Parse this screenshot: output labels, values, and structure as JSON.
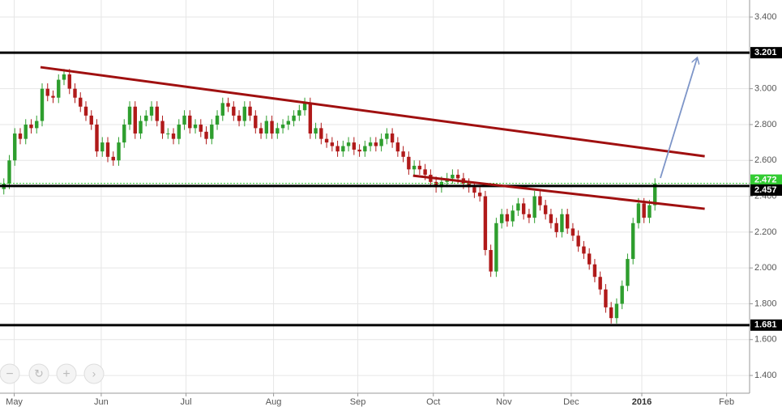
{
  "chart_data": {
    "type": "candlestick",
    "open": [
      2.44,
      2.47,
      2.6,
      2.75,
      2.72,
      2.8,
      2.78,
      2.82,
      3.0,
      2.96,
      2.95,
      3.05,
      3.08,
      3.0,
      2.95,
      2.9,
      2.85,
      2.8,
      2.65,
      2.7,
      2.62,
      2.6,
      2.7,
      2.8,
      2.9,
      2.75,
      2.82,
      2.85,
      2.9,
      2.82,
      2.75,
      2.75,
      2.72,
      2.8,
      2.85,
      2.78,
      2.8,
      2.76,
      2.72,
      2.8,
      2.85,
      2.92,
      2.9,
      2.85,
      2.82,
      2.9,
      2.85,
      2.78,
      2.75,
      2.82,
      2.75,
      2.78,
      2.8,
      2.82,
      2.85,
      2.88,
      2.92,
      2.75,
      2.78,
      2.72,
      2.7,
      2.68,
      2.65,
      2.68,
      2.7,
      2.66,
      2.65,
      2.68,
      2.7,
      2.68,
      2.72,
      2.75,
      2.7,
      2.65,
      2.62,
      2.55,
      2.57,
      2.55,
      2.52,
      2.48,
      2.45,
      2.48,
      2.5,
      2.52,
      2.5,
      2.47,
      2.45,
      2.42,
      2.4,
      2.1,
      1.98,
      2.25,
      2.3,
      2.26,
      2.32,
      2.36,
      2.3,
      2.28,
      2.4,
      2.35,
      2.3,
      2.25,
      2.2,
      2.3,
      2.22,
      2.18,
      2.12,
      2.08,
      2.02,
      1.95,
      1.88,
      1.78,
      1.72,
      1.8,
      1.9,
      2.05,
      2.25,
      2.36,
      2.28,
      2.35
    ],
    "high": [
      2.5,
      2.63,
      2.78,
      2.78,
      2.83,
      2.83,
      2.85,
      3.03,
      3.03,
      2.99,
      3.08,
      3.11,
      3.11,
      3.03,
      2.98,
      2.93,
      2.88,
      2.83,
      2.73,
      2.73,
      2.65,
      2.73,
      2.83,
      2.93,
      2.93,
      2.85,
      2.88,
      2.93,
      2.93,
      2.85,
      2.78,
      2.78,
      2.83,
      2.88,
      2.88,
      2.83,
      2.83,
      2.79,
      2.83,
      2.88,
      2.95,
      2.95,
      2.93,
      2.88,
      2.93,
      2.93,
      2.88,
      2.81,
      2.85,
      2.85,
      2.81,
      2.83,
      2.85,
      2.88,
      2.91,
      2.95,
      2.95,
      2.81,
      2.81,
      2.75,
      2.73,
      2.71,
      2.71,
      2.73,
      2.73,
      2.69,
      2.71,
      2.73,
      2.73,
      2.75,
      2.78,
      2.78,
      2.73,
      2.68,
      2.65,
      2.6,
      2.6,
      2.58,
      2.55,
      2.51,
      2.51,
      2.53,
      2.55,
      2.55,
      2.53,
      2.5,
      2.48,
      2.45,
      2.43,
      2.13,
      2.28,
      2.33,
      2.33,
      2.35,
      2.39,
      2.39,
      2.33,
      2.43,
      2.43,
      2.38,
      2.33,
      2.28,
      2.33,
      2.33,
      2.25,
      2.21,
      2.15,
      2.11,
      2.05,
      1.98,
      1.91,
      1.81,
      1.83,
      1.93,
      2.08,
      2.28,
      2.39,
      2.39,
      2.38,
      2.5
    ],
    "low": [
      2.41,
      2.44,
      2.57,
      2.69,
      2.69,
      2.75,
      2.75,
      2.79,
      2.93,
      2.92,
      2.92,
      3.02,
      2.97,
      2.92,
      2.87,
      2.82,
      2.77,
      2.62,
      2.62,
      2.59,
      2.57,
      2.57,
      2.67,
      2.77,
      2.72,
      2.72,
      2.79,
      2.82,
      2.79,
      2.72,
      2.72,
      2.69,
      2.69,
      2.77,
      2.75,
      2.75,
      2.73,
      2.69,
      2.69,
      2.77,
      2.82,
      2.87,
      2.82,
      2.79,
      2.79,
      2.82,
      2.75,
      2.72,
      2.72,
      2.72,
      2.72,
      2.75,
      2.77,
      2.79,
      2.82,
      2.85,
      2.72,
      2.72,
      2.69,
      2.67,
      2.65,
      2.62,
      2.62,
      2.65,
      2.63,
      2.62,
      2.62,
      2.65,
      2.65,
      2.65,
      2.69,
      2.67,
      2.62,
      2.59,
      2.52,
      2.52,
      2.52,
      2.49,
      2.45,
      2.42,
      2.42,
      2.45,
      2.47,
      2.47,
      2.44,
      2.42,
      2.39,
      2.37,
      2.07,
      1.95,
      1.95,
      2.22,
      2.23,
      2.23,
      2.29,
      2.27,
      2.25,
      2.25,
      2.32,
      2.27,
      2.22,
      2.17,
      2.17,
      2.19,
      2.15,
      2.09,
      2.05,
      1.99,
      1.92,
      1.85,
      1.75,
      1.69,
      1.69,
      1.77,
      1.87,
      2.02,
      2.22,
      2.25,
      2.25,
      2.32
    ],
    "close": [
      2.47,
      2.6,
      2.75,
      2.72,
      2.8,
      2.78,
      2.82,
      3.0,
      2.96,
      2.95,
      3.05,
      3.08,
      3.0,
      2.95,
      2.9,
      2.85,
      2.8,
      2.65,
      2.7,
      2.62,
      2.6,
      2.7,
      2.8,
      2.9,
      2.75,
      2.82,
      2.85,
      2.9,
      2.82,
      2.75,
      2.75,
      2.72,
      2.8,
      2.85,
      2.78,
      2.8,
      2.76,
      2.72,
      2.8,
      2.85,
      2.92,
      2.9,
      2.85,
      2.82,
      2.9,
      2.85,
      2.78,
      2.75,
      2.82,
      2.75,
      2.78,
      2.8,
      2.82,
      2.85,
      2.88,
      2.92,
      2.75,
      2.78,
      2.72,
      2.7,
      2.68,
      2.65,
      2.68,
      2.7,
      2.66,
      2.65,
      2.68,
      2.7,
      2.68,
      2.72,
      2.75,
      2.7,
      2.65,
      2.62,
      2.55,
      2.57,
      2.55,
      2.52,
      2.48,
      2.45,
      2.48,
      2.5,
      2.52,
      2.5,
      2.47,
      2.45,
      2.42,
      2.4,
      2.1,
      1.98,
      2.25,
      2.3,
      2.26,
      2.32,
      2.36,
      2.3,
      2.28,
      2.4,
      2.35,
      2.3,
      2.25,
      2.2,
      2.3,
      2.22,
      2.18,
      2.12,
      2.08,
      2.02,
      1.95,
      1.88,
      1.78,
      1.72,
      1.8,
      1.9,
      2.05,
      2.25,
      2.36,
      2.28,
      2.35,
      2.47
    ],
    "up_color": "#2e9e2e",
    "down_color": "#b01a1a",
    "xlim": [
      -0.7,
      136.3
    ],
    "xticks": [
      {
        "value": 1.9,
        "label": "May"
      },
      {
        "value": 17.8,
        "label": "Jun"
      },
      {
        "value": 33.3,
        "label": "Jul"
      },
      {
        "value": 49.3,
        "label": "Aug"
      },
      {
        "value": 64.7,
        "label": "Sep"
      },
      {
        "value": 78.5,
        "label": "Oct"
      },
      {
        "value": 91.4,
        "label": "Nov"
      },
      {
        "value": 103.7,
        "label": "Dec"
      },
      {
        "value": 116.6,
        "label": "2016"
      },
      {
        "value": 132.1,
        "label": "Feb"
      }
    ],
    "ylim": [
      1.301,
      3.495
    ],
    "yticks": [
      {
        "value": 1.4,
        "label": "1.400"
      },
      {
        "value": 1.6,
        "label": "1.600"
      },
      {
        "value": 1.8,
        "label": "1.800"
      },
      {
        "value": 2.0,
        "label": "2.000"
      },
      {
        "value": 2.2,
        "label": "2.200"
      },
      {
        "value": 2.4,
        "label": "2.400"
      },
      {
        "value": 2.6,
        "label": "2.600"
      },
      {
        "value": 2.8,
        "label": "2.800"
      },
      {
        "value": 3.0,
        "label": "3.000"
      },
      {
        "value": 3.2,
        "label": "3.200"
      },
      {
        "value": 3.4,
        "label": "3.400"
      }
    ],
    "grid": true,
    "levels": [
      {
        "value": 3.201,
        "label": "3.201",
        "color": "#000000"
      },
      {
        "value": 2.472,
        "label": "2.472",
        "color": "#33cc33",
        "dashed": true
      },
      {
        "value": 2.457,
        "label": "2.457",
        "color": "#000000"
      },
      {
        "value": 1.681,
        "label": "1.681",
        "color": "#000000"
      }
    ],
    "trendlines": [
      {
        "x": [
          6.7,
          128.1
        ],
        "y": [
          3.12,
          2.623
        ],
        "color": "#a01010"
      },
      {
        "x": [
          74.8,
          128.1
        ],
        "y": [
          2.515,
          2.33
        ],
        "color": "#a01010"
      },
      {
        "x": [
          120.0,
          126.7
        ],
        "y": [
          2.502,
          3.17
        ],
        "color": "#7d95c8",
        "arrow": true
      }
    ]
  }
}
